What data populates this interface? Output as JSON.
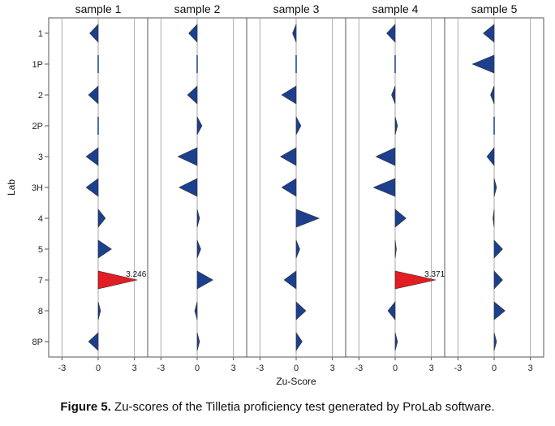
{
  "chart_data": {
    "type": "zscore-panel",
    "xlabel": "Zu-Score",
    "ylabel": "Lab",
    "xlim": [
      -4.1,
      4.1
    ],
    "x_ticks": [
      "-3",
      "0",
      "3"
    ],
    "labs": [
      "1",
      "1P",
      "2",
      "2P",
      "3",
      "3H",
      "4",
      "5",
      "7",
      "8",
      "8P"
    ],
    "series": [
      {
        "name": "sample 1",
        "values": [
          -0.7,
          0,
          -0.8,
          0,
          -1.0,
          -1.0,
          0.6,
          1.1,
          3.246,
          0.2,
          -0.8
        ]
      },
      {
        "name": "sample 2",
        "values": [
          -0.7,
          0,
          -0.8,
          0.4,
          -1.6,
          -1.5,
          0.2,
          0.3,
          1.3,
          -0.2,
          0.2
        ]
      },
      {
        "name": "sample 3",
        "values": [
          -0.3,
          0,
          -1.2,
          0.4,
          -1.3,
          -1.2,
          1.9,
          0.3,
          -1.0,
          0.8,
          0.5
        ]
      },
      {
        "name": "sample 4",
        "values": [
          -0.7,
          0,
          -0.3,
          0.2,
          -1.6,
          -1.8,
          0.9,
          0.1,
          3.371,
          -0.6,
          0.2
        ]
      },
      {
        "name": "sample 5",
        "values": [
          -0.9,
          -1.8,
          -0.3,
          0,
          -0.6,
          0.2,
          -0.1,
          0.7,
          0.7,
          0.9,
          0.2
        ]
      }
    ],
    "data_labels": [
      {
        "series": 0,
        "lab": "7",
        "text": "3.246"
      },
      {
        "series": 3,
        "lab": "7",
        "text": "3.371"
      }
    ],
    "threshold": 3,
    "colors": {
      "normal": "#1c3f8e",
      "outlier": "#e21d23",
      "grid": "#aaaaaa",
      "frame": "#555555"
    }
  },
  "caption": {
    "label": "Figure 5.",
    "text": "Zu-scores of the Tilletia proficiency test generated by ProLab software."
  }
}
